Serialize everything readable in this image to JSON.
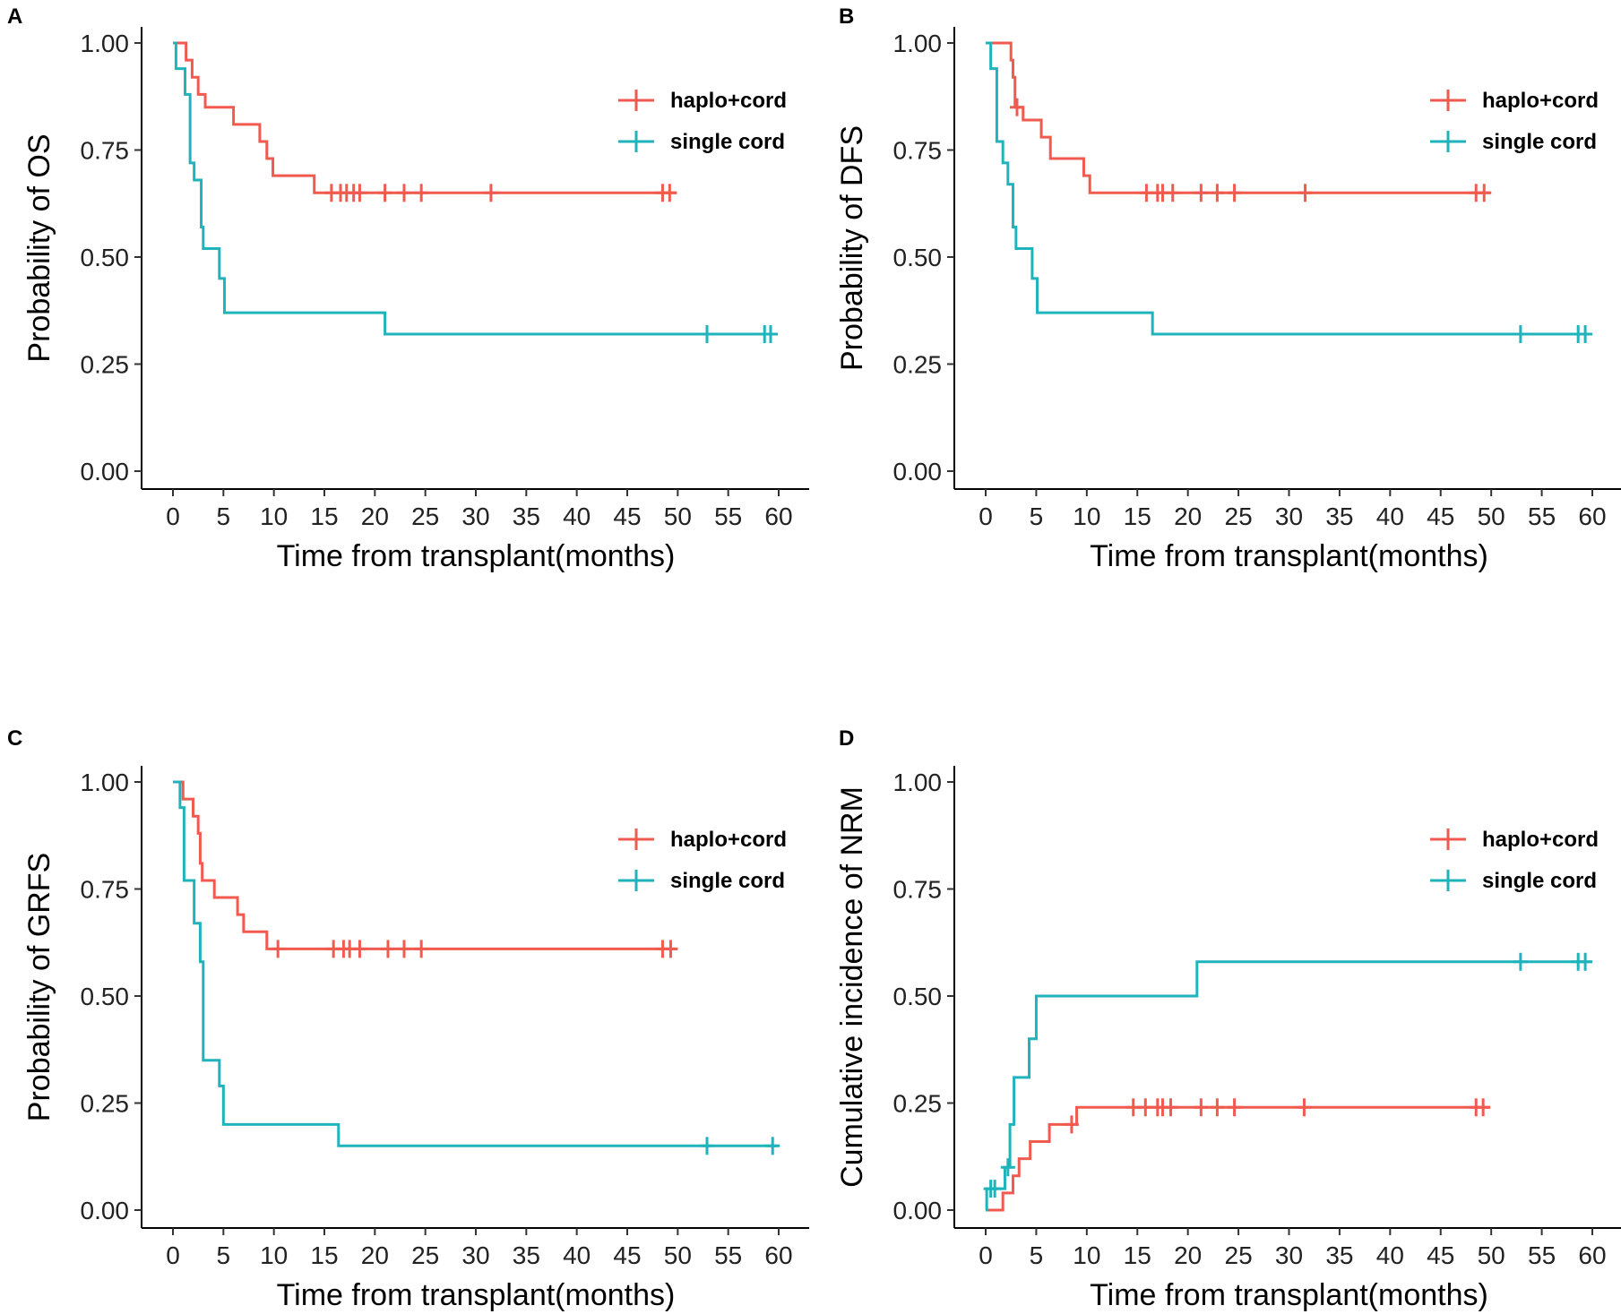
{
  "colors": {
    "haplo_cord": "#F05A4F",
    "single_cord": "#1FB3BC",
    "axis": "#000000"
  },
  "chart_data": [
    {
      "panel": "A",
      "type": "line",
      "title": "",
      "xlabel": "Time from transplant(months)",
      "ylabel": "Probability of OS",
      "xlim": [
        0,
        60
      ],
      "ylim": [
        0,
        1
      ],
      "xticks": [
        "0",
        "5",
        "10",
        "15",
        "20",
        "25",
        "30",
        "35",
        "40",
        "45",
        "50",
        "55",
        "60"
      ],
      "yticks": [
        "0.00",
        "0.25",
        "0.50",
        "0.75",
        "1.00"
      ],
      "legend": [
        "haplo+cord",
        "single cord"
      ],
      "series": [
        {
          "name": "haplo+cord",
          "steps": [
            [
              0,
              1.0
            ],
            [
              1.3,
              0.96
            ],
            [
              1.9,
              0.92
            ],
            [
              2.5,
              0.88
            ],
            [
              3.2,
              0.85
            ],
            [
              6,
              0.81
            ],
            [
              8.6,
              0.77
            ],
            [
              9.3,
              0.73
            ],
            [
              9.9,
              0.69
            ],
            [
              14,
              0.65
            ],
            [
              49.9,
              0.65
            ]
          ],
          "censor": [
            [
              15.7,
              0.65
            ],
            [
              16.6,
              0.65
            ],
            [
              17.2,
              0.65
            ],
            [
              17.9,
              0.65
            ],
            [
              18.5,
              0.65
            ],
            [
              21,
              0.65
            ],
            [
              22.9,
              0.65
            ],
            [
              24.6,
              0.65
            ],
            [
              31.5,
              0.65
            ],
            [
              48.5,
              0.65
            ],
            [
              49.2,
              0.65
            ]
          ]
        },
        {
          "name": "single cord",
          "steps": [
            [
              0,
              1.0
            ],
            [
              0.3,
              0.94
            ],
            [
              1.2,
              0.88
            ],
            [
              1.7,
              0.72
            ],
            [
              2.1,
              0.68
            ],
            [
              2.8,
              0.57
            ],
            [
              3,
              0.52
            ],
            [
              4.6,
              0.45
            ],
            [
              5.1,
              0.37
            ],
            [
              21,
              0.32
            ],
            [
              59.9,
              0.32
            ]
          ],
          "censor": [
            [
              52.9,
              0.32
            ],
            [
              58.6,
              0.32
            ],
            [
              59.2,
              0.32
            ]
          ]
        }
      ]
    },
    {
      "panel": "B",
      "type": "line",
      "title": "",
      "xlabel": "Time from transplant(months)",
      "ylabel": "Probability of DFS",
      "xlim": [
        0,
        60
      ],
      "ylim": [
        0,
        1
      ],
      "xticks": [
        "0",
        "5",
        "10",
        "15",
        "20",
        "25",
        "30",
        "35",
        "40",
        "45",
        "50",
        "55",
        "60"
      ],
      "yticks": [
        "0.00",
        "0.25",
        "0.50",
        "0.75",
        "1.00"
      ],
      "legend": [
        "haplo+cord",
        "single cord"
      ],
      "series": [
        {
          "name": "haplo+cord",
          "steps": [
            [
              0,
              1.0
            ],
            [
              2.5,
              0.96
            ],
            [
              2.7,
              0.92
            ],
            [
              2.9,
              0.85
            ],
            [
              3.7,
              0.82
            ],
            [
              5.5,
              0.78
            ],
            [
              6.4,
              0.73
            ],
            [
              7.3,
              0.73
            ],
            [
              9.7,
              0.69
            ],
            [
              10.3,
              0.65
            ],
            [
              49.9,
              0.65
            ]
          ],
          "censor": [
            [
              3.1,
              0.85
            ],
            [
              15.9,
              0.65
            ],
            [
              17,
              0.65
            ],
            [
              17.5,
              0.65
            ],
            [
              18.5,
              0.65
            ],
            [
              21.3,
              0.65
            ],
            [
              22.9,
              0.65
            ],
            [
              24.6,
              0.65
            ],
            [
              31.6,
              0.65
            ],
            [
              48.5,
              0.65
            ],
            [
              49.3,
              0.65
            ]
          ]
        },
        {
          "name": "single cord",
          "steps": [
            [
              0,
              1.0
            ],
            [
              0.5,
              0.94
            ],
            [
              1.1,
              0.77
            ],
            [
              1.7,
              0.72
            ],
            [
              2.2,
              0.67
            ],
            [
              2.7,
              0.57
            ],
            [
              3,
              0.52
            ],
            [
              4.6,
              0.45
            ],
            [
              5.1,
              0.37
            ],
            [
              16.5,
              0.32
            ],
            [
              59.9,
              0.32
            ]
          ],
          "censor": [
            [
              52.9,
              0.32
            ],
            [
              58.6,
              0.32
            ],
            [
              59.3,
              0.32
            ]
          ]
        }
      ]
    },
    {
      "panel": "C",
      "type": "line",
      "title": "",
      "xlabel": "Time from transplant(months)",
      "ylabel": "Probability of GRFS",
      "xlim": [
        0,
        60
      ],
      "ylim": [
        0,
        1
      ],
      "xticks": [
        "0",
        "5",
        "10",
        "15",
        "20",
        "25",
        "30",
        "35",
        "40",
        "45",
        "50",
        "55",
        "60"
      ],
      "yticks": [
        "0.00",
        "0.25",
        "0.50",
        "0.75",
        "1.00"
      ],
      "legend": [
        "haplo+cord",
        "single cord"
      ],
      "series": [
        {
          "name": "haplo+cord",
          "steps": [
            [
              0,
              1.0
            ],
            [
              1,
              0.96
            ],
            [
              2,
              0.92
            ],
            [
              2.5,
              0.88
            ],
            [
              2.7,
              0.81
            ],
            [
              2.9,
              0.77
            ],
            [
              4.1,
              0.73
            ],
            [
              6.4,
              0.69
            ],
            [
              7,
              0.65
            ],
            [
              9.3,
              0.61
            ],
            [
              49.9,
              0.61
            ]
          ],
          "censor": [
            [
              10.4,
              0.61
            ],
            [
              15.9,
              0.61
            ],
            [
              16.9,
              0.61
            ],
            [
              17.5,
              0.61
            ],
            [
              18.5,
              0.61
            ],
            [
              21.3,
              0.61
            ],
            [
              22.9,
              0.61
            ],
            [
              24.6,
              0.61
            ],
            [
              48.5,
              0.61
            ],
            [
              49.3,
              0.61
            ]
          ]
        },
        {
          "name": "single cord",
          "steps": [
            [
              0,
              1.0
            ],
            [
              0.7,
              0.94
            ],
            [
              1.1,
              0.77
            ],
            [
              2.1,
              0.67
            ],
            [
              2.7,
              0.58
            ],
            [
              3,
              0.35
            ],
            [
              4.6,
              0.29
            ],
            [
              5,
              0.2
            ],
            [
              16.4,
              0.15
            ],
            [
              59.9,
              0.15
            ]
          ],
          "censor": [
            [
              52.9,
              0.15
            ],
            [
              59.4,
              0.15
            ]
          ]
        }
      ]
    },
    {
      "panel": "D",
      "type": "line",
      "title": "",
      "xlabel": "Time from transplant(months)",
      "ylabel": "Cumulative incidence of NRM",
      "xlim": [
        0,
        60
      ],
      "ylim": [
        0,
        1
      ],
      "xticks": [
        "0",
        "5",
        "10",
        "15",
        "20",
        "25",
        "30",
        "35",
        "40",
        "45",
        "50",
        "55",
        "60"
      ],
      "yticks": [
        "0.00",
        "0.25",
        "0.50",
        "0.75",
        "1.00"
      ],
      "legend": [
        "haplo+cord",
        "single cord"
      ],
      "series": [
        {
          "name": "haplo+cord",
          "steps": [
            [
              0,
              0
            ],
            [
              1.7,
              0.04
            ],
            [
              2.7,
              0.08
            ],
            [
              3.3,
              0.12
            ],
            [
              4.4,
              0.16
            ],
            [
              6.3,
              0.2
            ],
            [
              8.7,
              0.2
            ],
            [
              9,
              0.24
            ],
            [
              49.9,
              0.24
            ]
          ],
          "censor": [
            [
              8.5,
              0.2
            ],
            [
              14.6,
              0.24
            ],
            [
              15.8,
              0.24
            ],
            [
              17,
              0.24
            ],
            [
              17.5,
              0.24
            ],
            [
              18.3,
              0.24
            ],
            [
              21.3,
              0.24
            ],
            [
              22.9,
              0.24
            ],
            [
              24.6,
              0.24
            ],
            [
              31.5,
              0.24
            ],
            [
              48.5,
              0.24
            ],
            [
              49.2,
              0.24
            ]
          ]
        },
        {
          "name": "single cord",
          "steps": [
            [
              0,
              0
            ],
            [
              0.1,
              0.05
            ],
            [
              1.9,
              0.1
            ],
            [
              2.4,
              0.2
            ],
            [
              2.8,
              0.31
            ],
            [
              4.3,
              0.4
            ],
            [
              5,
              0.5
            ],
            [
              20.9,
              0.58
            ],
            [
              59.9,
              0.58
            ]
          ],
          "censor": [
            [
              0.5,
              0.05
            ],
            [
              0.9,
              0.05
            ],
            [
              2.2,
              0.1
            ],
            [
              52.9,
              0.58
            ],
            [
              58.6,
              0.58
            ],
            [
              59.3,
              0.58
            ]
          ]
        }
      ]
    }
  ]
}
